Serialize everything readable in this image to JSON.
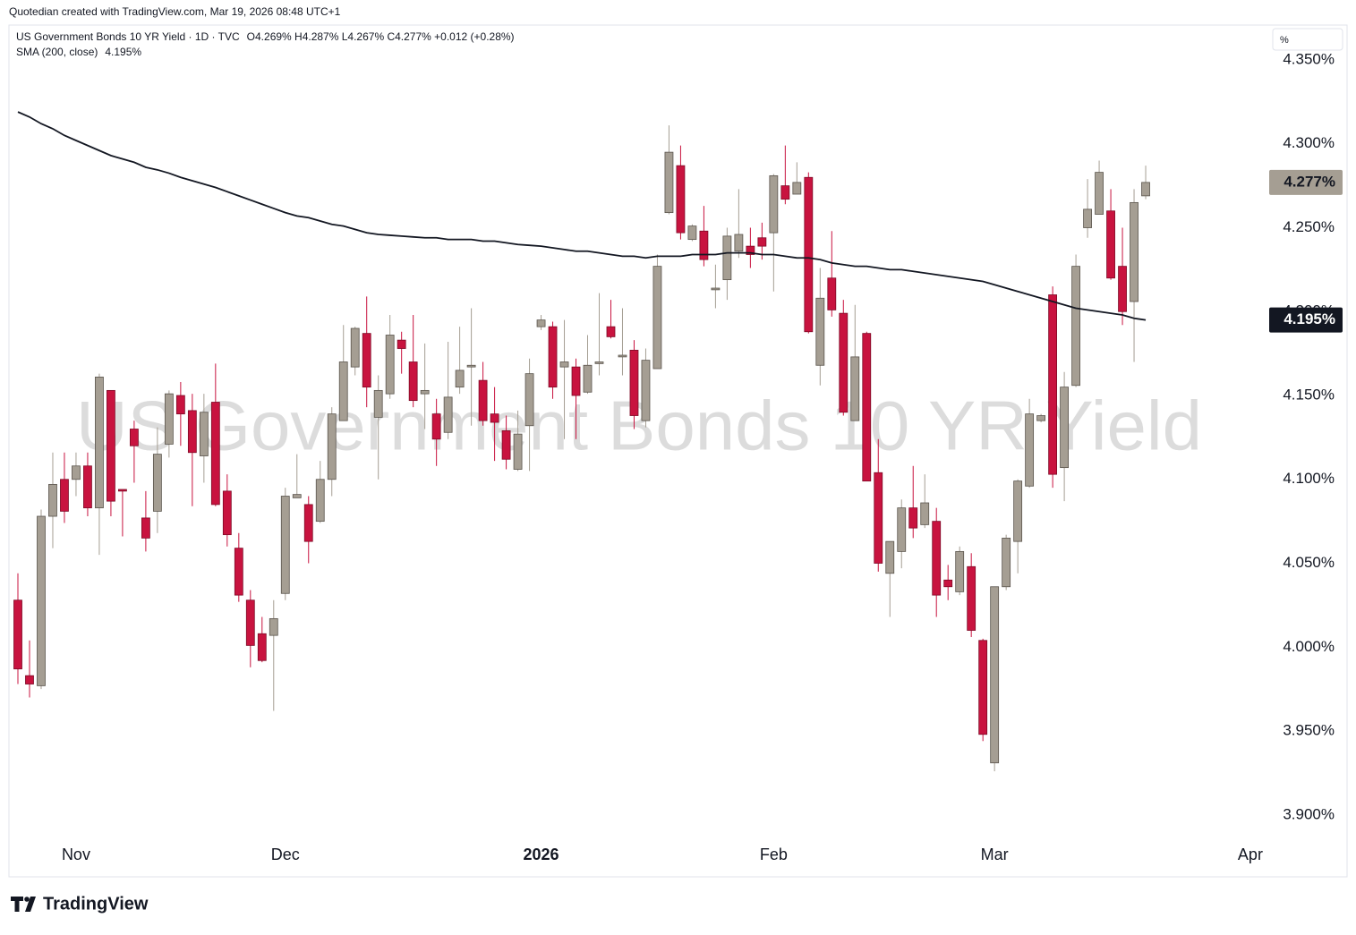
{
  "header": "Quotedian created with TradingView.com, Mar 19, 2026 08:48 UTC+1",
  "footer_logo": "TradingView",
  "chart_data": {
    "type": "candlestick",
    "title": "US Government Bonds 10 YR Yield",
    "scale_button": "%",
    "grid": false,
    "ylim": [
      3.885,
      4.37
    ],
    "yticks": [
      {
        "value": 4.35,
        "label": "4.350%"
      },
      {
        "value": 4.3,
        "label": "4.300%"
      },
      {
        "value": 4.25,
        "label": "4.250%"
      },
      {
        "value": 4.2,
        "label": "4.200%"
      },
      {
        "value": 4.15,
        "label": "4.150%"
      },
      {
        "value": 4.1,
        "label": "4.100%"
      },
      {
        "value": 4.05,
        "label": "4.050%"
      },
      {
        "value": 4.0,
        "label": "4.000%"
      },
      {
        "value": 3.95,
        "label": "3.950%"
      },
      {
        "value": 3.9,
        "label": "3.900%"
      }
    ],
    "categories": [
      null,
      null,
      null,
      null,
      null,
      "Nov",
      null,
      null,
      null,
      null,
      null,
      null,
      null,
      null,
      null,
      null,
      null,
      null,
      null,
      null,
      null,
      null,
      null,
      "Dec",
      null,
      null,
      null,
      null,
      null,
      null,
      null,
      null,
      null,
      null,
      null,
      null,
      null,
      null,
      null,
      null,
      null,
      null,
      null,
      null,
      null,
      "2026",
      null,
      null,
      null,
      null,
      null,
      null,
      null,
      null,
      null,
      null,
      null,
      null,
      null,
      null,
      null,
      null,
      null,
      null,
      null,
      "Feb",
      null,
      null,
      null,
      null,
      null,
      null,
      null,
      null,
      null,
      null,
      null,
      null,
      null,
      null,
      null,
      null,
      null,
      null,
      "Mar",
      null,
      null,
      null,
      null,
      null,
      null,
      null,
      null,
      null,
      null,
      null,
      null,
      null,
      null,
      null,
      null,
      null,
      null,
      null,
      null,
      null,
      "Apr"
    ],
    "series": [
      {
        "name": "US Government Bonds 10 YR Yield · 1D · TVC",
        "legend_values": "O4.269%  H4.287%  L4.267%  C4.277%  +0.012 (+0.28%)",
        "up_color": "#a59e93",
        "down_color": "#c8133f",
        "open": [
          4.028,
          3.983,
          3.977,
          4.078,
          4.1,
          4.1,
          4.108,
          4.083,
          4.153,
          4.094,
          4.13,
          4.077,
          4.081,
          4.121,
          4.15,
          4.141,
          4.114,
          4.146,
          4.093,
          4.059,
          4.028,
          4.008,
          4.007,
          4.032,
          4.089,
          4.085,
          4.075,
          4.1,
          4.135,
          4.167,
          4.187,
          4.137,
          4.151,
          4.183,
          4.17,
          4.151,
          4.139,
          4.128,
          4.155,
          4.167,
          4.159,
          4.139,
          4.129,
          4.106,
          4.132,
          4.191,
          4.191,
          4.167,
          4.167,
          4.152,
          4.169,
          4.191,
          4.173,
          4.177,
          4.135,
          4.166,
          4.259,
          4.287,
          4.243,
          4.248,
          4.213,
          4.219,
          4.236,
          4.239,
          4.244,
          4.247,
          4.275,
          4.27,
          4.28,
          4.168,
          4.22,
          4.199,
          4.135,
          4.187,
          4.104,
          4.044,
          4.057,
          4.083,
          4.073,
          4.075,
          4.04,
          4.033,
          4.048,
          4.004,
          3.931,
          4.036,
          4.063,
          4.096,
          4.135,
          4.21,
          4.107,
          4.156,
          4.25,
          4.258,
          4.26,
          4.227,
          4.206,
          4.269,
          null,
          null,
          null,
          null,
          null,
          null,
          null,
          null,
          null
        ],
        "high": [
          4.044,
          4.004,
          4.082,
          4.116,
          4.116,
          4.116,
          4.116,
          4.163,
          4.153,
          4.094,
          4.135,
          4.093,
          4.131,
          4.153,
          4.158,
          4.151,
          4.151,
          4.169,
          4.103,
          4.068,
          4.034,
          4.018,
          4.028,
          4.095,
          4.115,
          4.09,
          4.111,
          4.143,
          4.192,
          4.191,
          4.209,
          4.162,
          4.198,
          4.188,
          4.198,
          4.181,
          4.148,
          4.182,
          4.191,
          4.202,
          4.17,
          4.155,
          4.138,
          4.141,
          4.172,
          4.198,
          4.194,
          4.195,
          4.172,
          4.186,
          4.211,
          4.207,
          4.202,
          4.183,
          4.178,
          4.234,
          4.311,
          4.299,
          4.252,
          4.263,
          4.228,
          4.25,
          4.273,
          4.25,
          4.253,
          4.282,
          4.299,
          4.289,
          4.283,
          4.226,
          4.248,
          4.207,
          4.204,
          4.188,
          4.124,
          4.063,
          4.088,
          4.108,
          4.103,
          4.083,
          4.049,
          4.06,
          4.056,
          4.005,
          4.036,
          4.067,
          4.1,
          4.148,
          4.139,
          4.215,
          4.164,
          4.234,
          4.279,
          4.29,
          4.273,
          4.25,
          4.273,
          4.287,
          null,
          null,
          null,
          null,
          null,
          null,
          null,
          null,
          null
        ],
        "low": [
          3.978,
          3.97,
          3.975,
          4.059,
          4.074,
          4.09,
          4.078,
          4.055,
          4.078,
          4.066,
          4.098,
          4.057,
          4.068,
          4.113,
          4.12,
          4.084,
          4.098,
          4.084,
          4.06,
          4.027,
          3.988,
          3.991,
          3.962,
          4.028,
          4.089,
          4.05,
          4.074,
          4.09,
          4.135,
          4.162,
          4.143,
          4.1,
          4.148,
          4.163,
          4.143,
          4.13,
          4.108,
          4.124,
          4.151,
          4.132,
          4.132,
          4.111,
          4.106,
          4.105,
          4.105,
          4.189,
          4.148,
          4.124,
          4.124,
          4.151,
          4.162,
          4.184,
          4.162,
          4.13,
          4.131,
          4.166,
          4.258,
          4.243,
          4.242,
          4.227,
          4.202,
          4.207,
          4.232,
          4.226,
          4.231,
          4.212,
          4.264,
          4.27,
          4.187,
          4.156,
          4.197,
          4.138,
          4.135,
          4.099,
          4.045,
          4.018,
          4.047,
          4.065,
          4.071,
          4.018,
          4.028,
          4.031,
          4.006,
          3.944,
          3.926,
          4.034,
          4.044,
          4.095,
          4.134,
          4.095,
          4.087,
          4.155,
          4.244,
          4.258,
          4.219,
          4.192,
          4.17,
          4.267,
          null,
          null,
          null,
          null,
          null,
          null,
          null,
          null,
          null
        ],
        "close": [
          3.987,
          3.978,
          4.078,
          4.097,
          4.081,
          4.108,
          4.083,
          4.161,
          4.087,
          4.093,
          4.12,
          4.065,
          4.115,
          4.151,
          4.139,
          4.116,
          4.14,
          4.085,
          4.067,
          4.031,
          4.001,
          3.992,
          4.017,
          4.09,
          4.091,
          4.063,
          4.1,
          4.139,
          4.17,
          4.19,
          4.155,
          4.153,
          4.186,
          4.178,
          4.147,
          4.153,
          4.124,
          4.149,
          4.165,
          4.168,
          4.135,
          4.134,
          4.112,
          4.127,
          4.163,
          4.195,
          4.155,
          4.17,
          4.15,
          4.168,
          4.17,
          4.185,
          4.174,
          4.138,
          4.171,
          4.227,
          4.295,
          4.247,
          4.251,
          4.231,
          4.214,
          4.245,
          4.246,
          4.234,
          4.239,
          4.281,
          4.267,
          4.277,
          4.188,
          4.208,
          4.201,
          4.14,
          4.173,
          4.099,
          4.05,
          4.063,
          4.083,
          4.071,
          4.086,
          4.031,
          4.036,
          4.057,
          4.01,
          3.948,
          4.036,
          4.065,
          4.099,
          4.139,
          4.138,
          4.103,
          4.155,
          4.227,
          4.261,
          4.283,
          4.22,
          4.2,
          4.265,
          4.277,
          null,
          null,
          null,
          null,
          null,
          null,
          null,
          null,
          null
        ]
      },
      {
        "name": "SMA (200, close)",
        "legend_values": "4.195%",
        "type": "line",
        "color": "#131722",
        "values": [
          4.319,
          4.316,
          4.312,
          4.309,
          4.305,
          4.302,
          4.299,
          4.296,
          4.293,
          4.291,
          4.289,
          4.286,
          4.2845,
          4.2825,
          4.28,
          4.278,
          4.276,
          4.274,
          4.2715,
          4.269,
          4.2665,
          4.264,
          4.2615,
          4.259,
          4.257,
          4.256,
          4.254,
          4.252,
          4.251,
          4.249,
          4.247,
          4.246,
          4.2455,
          4.245,
          4.2445,
          4.244,
          4.244,
          4.243,
          4.243,
          4.243,
          4.242,
          4.242,
          4.241,
          4.24,
          4.2395,
          4.239,
          4.238,
          4.237,
          4.236,
          4.236,
          4.235,
          4.234,
          4.233,
          4.233,
          4.232,
          4.233,
          4.233,
          4.233,
          4.234,
          4.234,
          4.234,
          4.235,
          4.235,
          4.235,
          4.234,
          4.234,
          4.233,
          4.232,
          4.232,
          4.231,
          4.229,
          4.228,
          4.227,
          4.227,
          4.226,
          4.225,
          4.225,
          4.224,
          4.223,
          4.222,
          4.221,
          4.22,
          4.219,
          4.218,
          4.216,
          4.214,
          4.212,
          4.21,
          4.208,
          4.206,
          4.204,
          4.202,
          4.201,
          4.2,
          4.199,
          4.198,
          4.196,
          4.195,
          null,
          null,
          null,
          null,
          null,
          null,
          null,
          null,
          null
        ]
      }
    ],
    "price_tags": [
      {
        "value": 4.277,
        "label": "4.277%",
        "color": "#a59e93",
        "text_color": "#131722"
      },
      {
        "value": 4.195,
        "label": "4.195%",
        "color": "#131722",
        "text_color": "#ffffff"
      }
    ]
  }
}
